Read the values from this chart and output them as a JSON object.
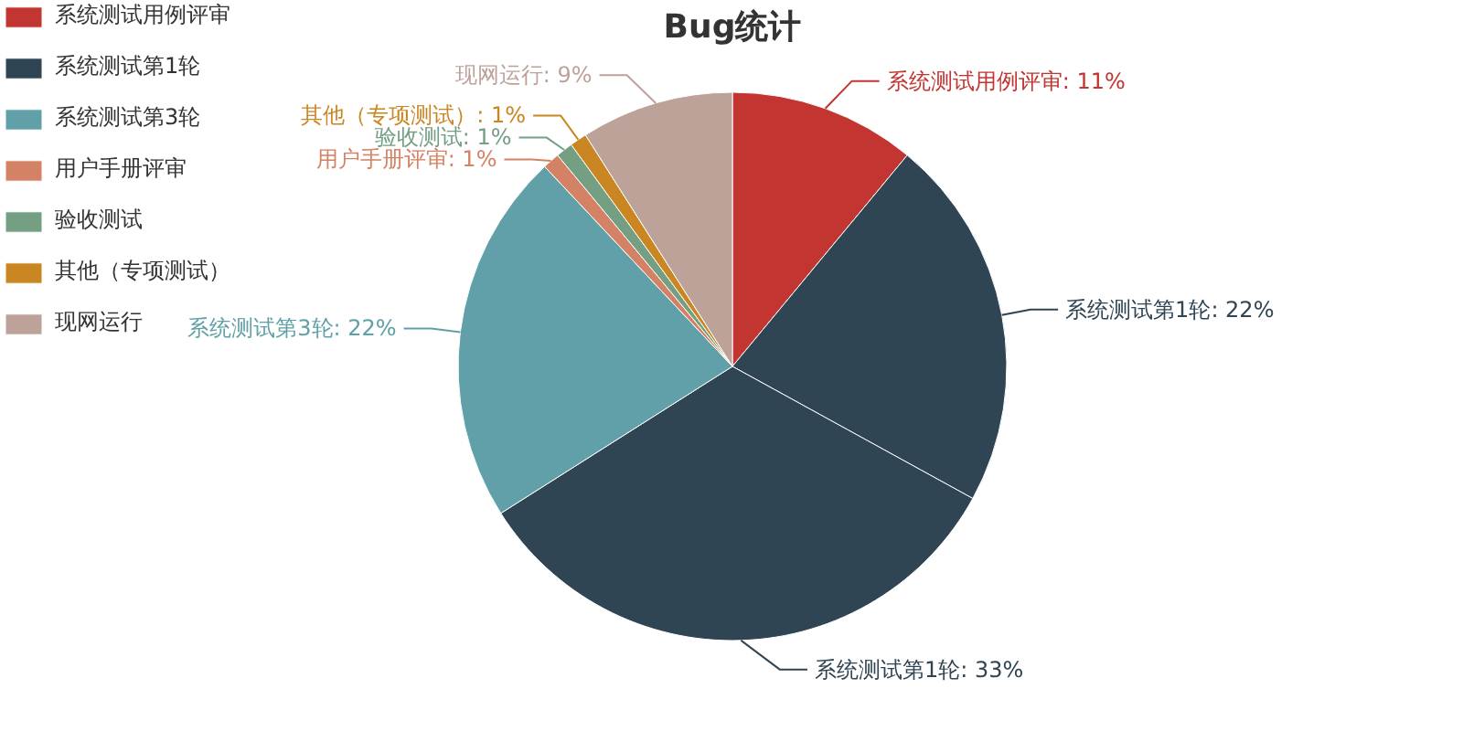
{
  "chart_data": {
    "type": "pie",
    "title": "Bug统计",
    "categories": [
      "系统测试用例评审",
      "系统测试第1轮",
      "系统测试第1轮",
      "系统测试第3轮",
      "用户手册评审",
      "验收测试",
      "其他（专项测试）",
      "现网运行"
    ],
    "values": [
      11,
      22,
      33,
      22,
      1,
      1,
      1,
      9
    ],
    "colors": [
      "#c23531",
      "#2f4554",
      "#2f4554",
      "#61a0a8",
      "#d48265",
      "#749f83",
      "#ca8622",
      "#bda29a"
    ],
    "value_labels": [
      ": 11%",
      ": 22%",
      ": 33%",
      ": 22%",
      ": 1%",
      ": 1%",
      ": 1%",
      ": 9%"
    ],
    "legend": "top left"
  }
}
